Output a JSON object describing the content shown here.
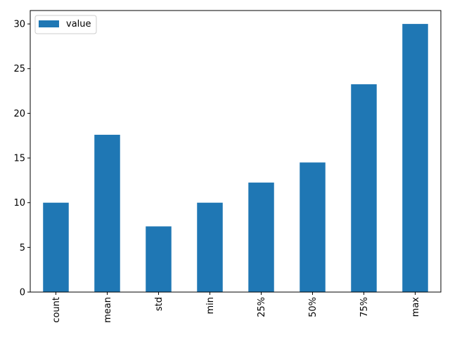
{
  "chart_data": {
    "type": "bar",
    "categories": [
      "count",
      "mean",
      "std",
      "min",
      "25%",
      "50%",
      "75%",
      "max"
    ],
    "series": [
      {
        "name": "value",
        "color": "#1f77b4",
        "values": [
          10,
          17.6,
          7.35,
          10,
          12.25,
          14.5,
          23.25,
          30
        ]
      }
    ],
    "title": "",
    "xlabel": "",
    "ylabel": "",
    "ylim": [
      0,
      31.5
    ],
    "yticks": [
      0,
      5,
      10,
      15,
      20,
      25,
      30
    ],
    "legend": {
      "position": "top-left",
      "label": "value"
    },
    "grid": false
  }
}
